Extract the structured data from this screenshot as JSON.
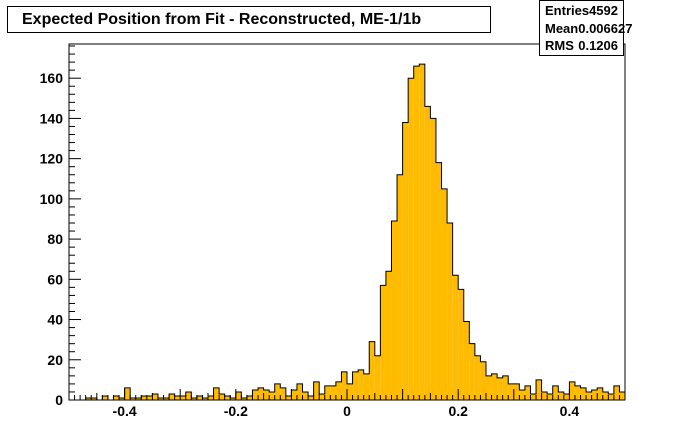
{
  "title": "Expected Position from Fit - Reconstructed, ME-1/1b",
  "stats": [
    {
      "label": "Entries",
      "value": "4592"
    },
    {
      "label": "Mean",
      "value": "0.006627"
    },
    {
      "label": "RMS",
      "value": "0.1206"
    }
  ],
  "colors": {
    "fill": "#ffbb00",
    "line": "#000000"
  },
  "chart_data": {
    "type": "bar",
    "title": "Expected Position from Fit - Reconstructed, ME-1/1b",
    "xlabel": "",
    "ylabel": "",
    "xlim": [
      -0.5,
      0.5
    ],
    "ylim": [
      0,
      177
    ],
    "bin_width": 0.01,
    "x_ticks": [
      -0.4,
      -0.2,
      0,
      0.2,
      0.4
    ],
    "x_tick_labels": [
      "-0.4",
      "-0.2",
      "0",
      "0.2",
      "0.4"
    ],
    "y_ticks": [
      0,
      20,
      40,
      60,
      80,
      100,
      120,
      140,
      160
    ],
    "y_tick_labels": [
      "0",
      "20",
      "40",
      "60",
      "80",
      "100",
      "120",
      "140",
      "160"
    ],
    "grid": false,
    "values": [
      0,
      0,
      0,
      1,
      1,
      0,
      2,
      0,
      2,
      1,
      6,
      1,
      1,
      2,
      2,
      3,
      1,
      1,
      3,
      2,
      2,
      4,
      1,
      2,
      1,
      2,
      6,
      3,
      2,
      1,
      4,
      1,
      2,
      5,
      6,
      5,
      4,
      8,
      6,
      2,
      5,
      8,
      4,
      2,
      9,
      3,
      7,
      7,
      9,
      14,
      8,
      14,
      15,
      13,
      29,
      22,
      57,
      64,
      89,
      112,
      138,
      160,
      166,
      167,
      146,
      140,
      118,
      105,
      88,
      62,
      55,
      39,
      28,
      22,
      19,
      12,
      13,
      11,
      12,
      8,
      8,
      5,
      7,
      3,
      10,
      4,
      3,
      7,
      4,
      3,
      9,
      7,
      6,
      4,
      5,
      6,
      4,
      3,
      7,
      4
    ]
  }
}
